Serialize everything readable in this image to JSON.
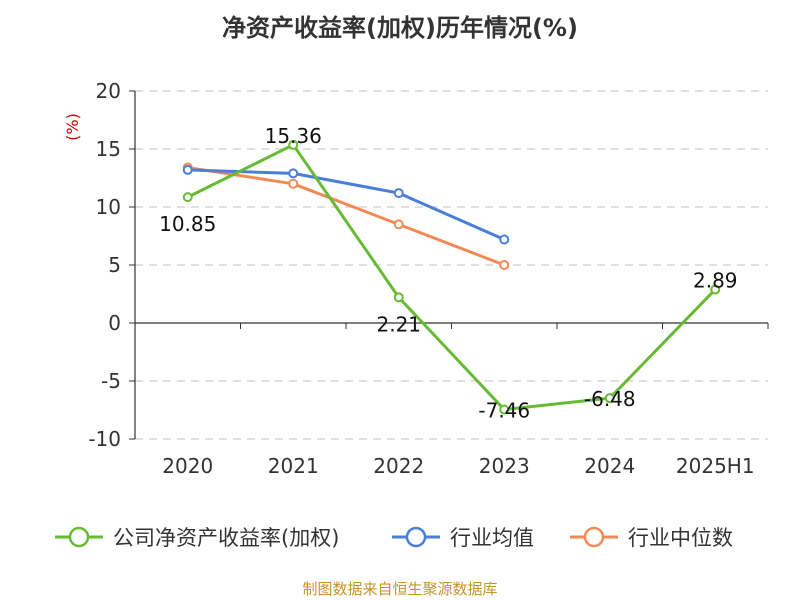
{
  "chart_data": {
    "type": "line",
    "title": "净资产收益率(加权)历年情况(%)",
    "ylabel": "(%)",
    "categories": [
      "2020",
      "2021",
      "2022",
      "2023",
      "2024",
      "2025H1"
    ],
    "ylim": [
      -10,
      20
    ],
    "yticks": [
      "20",
      "15",
      "10",
      "5",
      "0",
      "-5",
      "-10"
    ],
    "grid": true,
    "legend_position": "bottom",
    "series": [
      {
        "name": "公司净资产收益率(加权)",
        "color": "#66bb33",
        "values": [
          10.85,
          15.36,
          2.21,
          -7.46,
          -6.48,
          2.89
        ],
        "labels": [
          "10.85",
          "15.36",
          "2.21",
          "-7.46",
          "-6.48",
          "2.89"
        ]
      },
      {
        "name": "行业均值",
        "color": "#4a7fd9",
        "values": [
          13.2,
          12.9,
          11.2,
          7.2,
          null,
          null
        ]
      },
      {
        "name": "行业中位数",
        "color": "#f28a55",
        "values": [
          13.4,
          12.0,
          8.5,
          5.0,
          null,
          null
        ]
      }
    ]
  },
  "source_text": "制图数据来自恒生聚源数据库"
}
